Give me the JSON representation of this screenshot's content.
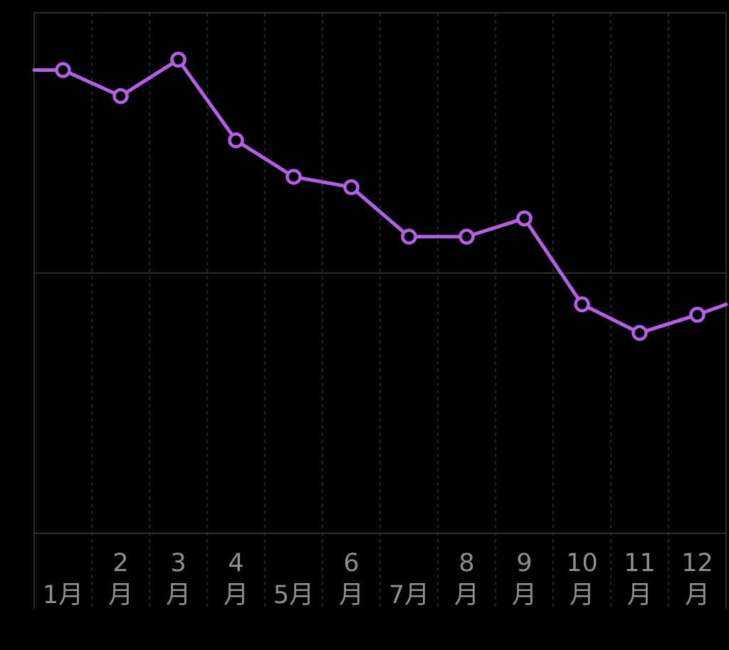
{
  "chart_data": {
    "type": "line",
    "title": "",
    "xlabel": "",
    "ylabel": "",
    "ylim": [
      0,
      2
    ],
    "grid": true,
    "colors": {
      "background": "#000000",
      "series": "#b360e6",
      "marker_fill": "#000000",
      "grid": "#3a3a3c",
      "tick_label": "#8e8e93"
    },
    "x_ticks": [
      {
        "month": 1,
        "label_lines": [
          "1月"
        ]
      },
      {
        "month": 2,
        "label_lines": [
          "2",
          "月"
        ]
      },
      {
        "month": 3,
        "label_lines": [
          "3",
          "月"
        ]
      },
      {
        "month": 4,
        "label_lines": [
          "4",
          "月"
        ]
      },
      {
        "month": 5,
        "label_lines": [
          "5月"
        ]
      },
      {
        "month": 6,
        "label_lines": [
          "6",
          "月"
        ]
      },
      {
        "month": 7,
        "label_lines": [
          "7月"
        ]
      },
      {
        "month": 8,
        "label_lines": [
          "8",
          "月"
        ]
      },
      {
        "month": 9,
        "label_lines": [
          "9",
          "月"
        ]
      },
      {
        "month": 10,
        "label_lines": [
          "10",
          "月"
        ]
      },
      {
        "month": 11,
        "label_lines": [
          "11",
          "月"
        ]
      },
      {
        "month": 12,
        "label_lines": [
          "12",
          "月"
        ]
      }
    ],
    "month_starts": [
      1,
      2,
      3,
      4,
      5,
      6,
      7,
      8,
      9,
      10,
      11,
      12,
      13
    ],
    "series": [
      {
        "x": [
          1.5,
          2.5,
          3.5,
          4.5,
          5.5,
          6.5,
          7.5,
          8.5,
          9.5,
          10.5,
          11.5,
          12.5
        ],
        "values": [
          1.78,
          1.68,
          1.82,
          1.51,
          1.37,
          1.33,
          1.14,
          1.14,
          1.21,
          0.88,
          0.77,
          0.84
        ]
      }
    ],
    "line_extends_to_edges": {
      "left_value": 1.78,
      "right_value": 0.88
    }
  }
}
